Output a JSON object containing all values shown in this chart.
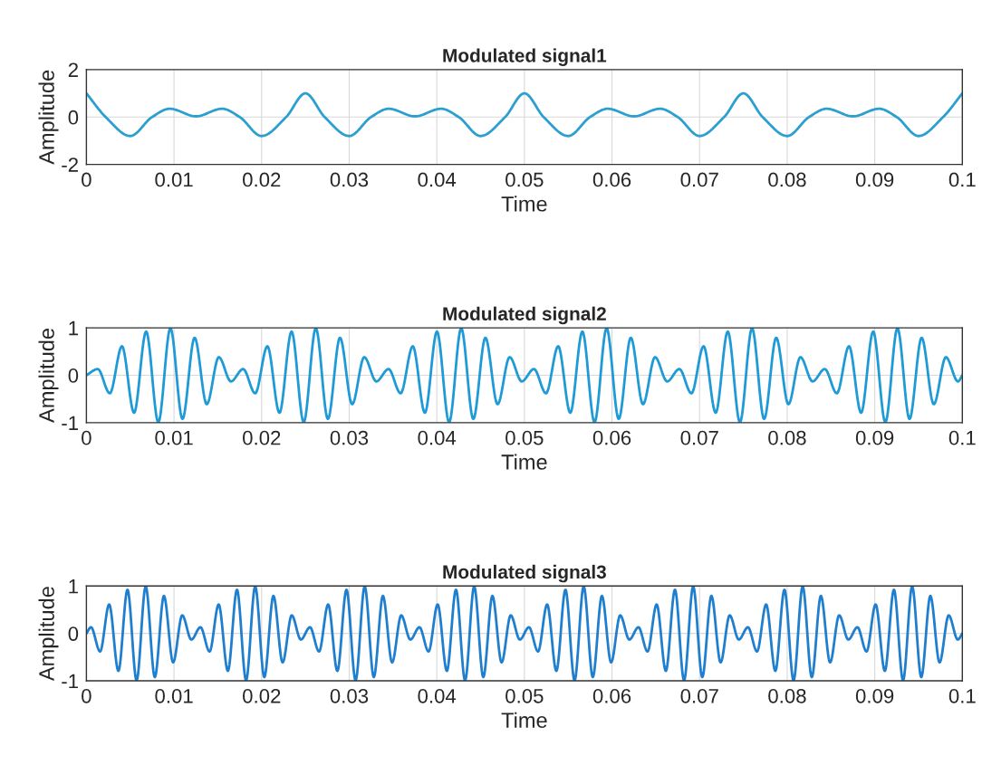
{
  "chart_data": [
    {
      "type": "line",
      "title": "Modulated signal1",
      "xlabel": "Time",
      "ylabel": "Amplitude",
      "xlim": [
        0,
        0.1
      ],
      "ylim": [
        -2,
        2
      ],
      "xticks": [
        0,
        0.01,
        0.02,
        0.03,
        0.04,
        0.05,
        0.06,
        0.07,
        0.08,
        0.09,
        0.1
      ],
      "yticks": [
        -2,
        0,
        2
      ],
      "grid": true,
      "series": [
        {
          "color": "#2a9fd0",
          "x": [
            0,
            0.0022,
            0.005,
            0.0075,
            0.0095,
            0.0125,
            0.0155,
            0.0175,
            0.02,
            0.0228,
            0.025,
            0.0272,
            0.03,
            0.0325,
            0.0345,
            0.0375,
            0.0405,
            0.0425,
            0.045,
            0.0478,
            0.05,
            0.0522,
            0.055,
            0.0575,
            0.0595,
            0.0625,
            0.0655,
            0.0675,
            0.07,
            0.0728,
            0.075,
            0.0772,
            0.08,
            0.0825,
            0.0845,
            0.0875,
            0.0905,
            0.0925,
            0.095,
            0.0978,
            0.1
          ],
          "values": [
            1,
            0,
            -0.8,
            0,
            0.35,
            0.03,
            0.35,
            0,
            -0.8,
            0,
            1,
            0,
            -0.8,
            0,
            0.35,
            0.03,
            0.35,
            0,
            -0.8,
            0,
            1,
            0,
            -0.8,
            0,
            0.35,
            0.03,
            0.35,
            0,
            -0.8,
            0,
            1,
            0,
            -0.8,
            0,
            0.35,
            0.03,
            0.35,
            0,
            -0.8,
            0,
            1
          ]
        }
      ]
    },
    {
      "type": "line",
      "title": "Modulated signal2",
      "xlabel": "Time",
      "ylabel": "Amplitude",
      "xlim": [
        0,
        0.1
      ],
      "ylim": [
        -1,
        1
      ],
      "xticks": [
        0,
        0.01,
        0.02,
        0.03,
        0.04,
        0.05,
        0.06,
        0.07,
        0.08,
        0.09,
        0.1
      ],
      "yticks": [
        -1,
        0,
        1
      ],
      "grid": true,
      "series": [
        {
          "color": "#1e9ad6",
          "x": [
            0,
            0.00129,
            0.00267,
            0.00406,
            0.00544,
            0.00682,
            0.00821,
            0.00959,
            0.01097,
            0.01235,
            0.01374,
            0.01512,
            0.0165,
            0.01789,
            0.01927,
            0.02066,
            0.02204,
            0.02342,
            0.02481,
            0.02619,
            0.02757,
            0.02895,
            0.03034,
            0.03172,
            0.0331,
            0.03449,
            0.03587,
            0.03726,
            0.03864,
            0.04002,
            0.04141,
            0.04279,
            0.04417,
            0.04555,
            0.04694,
            0.04832,
            0.0497,
            0.05109,
            0.05247,
            0.05386,
            0.05524,
            0.05662,
            0.05801,
            0.05939,
            0.06077,
            0.06215,
            0.06354,
            0.06492,
            0.0663,
            0.06769,
            0.06907,
            0.07046,
            0.07184,
            0.07322,
            0.07461,
            0.07599,
            0.07737,
            0.07875,
            0.08014,
            0.08152,
            0.0829,
            0.08429,
            0.08567,
            0.08706,
            0.08844,
            0.08982,
            0.09121,
            0.09259,
            0.09397,
            0.09535,
            0.09674,
            0.09812,
            0.0995,
            0.1
          ],
          "values": [
            0,
            0.13,
            -0.38,
            0.61,
            -0.79,
            0.92,
            -0.99,
            0.99,
            -0.92,
            0.79,
            -0.61,
            0.38,
            -0.13,
            0.13,
            -0.38,
            0.61,
            -0.79,
            0.92,
            -0.99,
            0.99,
            -0.92,
            0.79,
            -0.61,
            0.38,
            -0.13,
            0.13,
            -0.38,
            0.61,
            -0.79,
            0.92,
            -0.99,
            0.99,
            -0.92,
            0.79,
            -0.61,
            0.38,
            -0.13,
            0.13,
            -0.38,
            0.61,
            -0.79,
            0.92,
            -0.99,
            0.99,
            -0.92,
            0.79,
            -0.61,
            0.38,
            -0.13,
            0.13,
            -0.38,
            0.61,
            -0.79,
            0.92,
            -0.99,
            0.99,
            -0.92,
            0.79,
            -0.61,
            0.38,
            -0.13,
            0.13,
            -0.38,
            0.61,
            -0.79,
            0.92,
            -0.99,
            0.99,
            -0.92,
            0.79,
            -0.61,
            0.38,
            -0.13,
            0
          ]
        }
      ]
    },
    {
      "type": "line",
      "title": "Modulated signal3",
      "xlabel": "Time",
      "ylabel": "Amplitude",
      "xlim": [
        0,
        0.1
      ],
      "ylim": [
        -1,
        1
      ],
      "xticks": [
        0,
        0.01,
        0.02,
        0.03,
        0.04,
        0.05,
        0.06,
        0.07,
        0.08,
        0.09,
        0.1
      ],
      "yticks": [
        -1,
        0,
        1
      ],
      "grid": true,
      "series": [
        {
          "color": "#1f7fce",
          "x": [
            0,
            0.00052,
            0.00156,
            0.0026,
            0.00365,
            0.00469,
            0.00573,
            0.00677,
            0.00781,
            0.00885,
            0.0099,
            0.01094,
            0.01198,
            0.01302,
            0.01406,
            0.0151,
            0.01615,
            0.01719,
            0.01823,
            0.01927,
            0.02031,
            0.02135,
            0.0224,
            0.02344,
            0.02448,
            0.02552,
            0.02656,
            0.0276,
            0.02865,
            0.02969,
            0.03073,
            0.03177,
            0.03281,
            0.03385,
            0.0349,
            0.03594,
            0.03698,
            0.03802,
            0.03906,
            0.0401,
            0.04115,
            0.04219,
            0.04323,
            0.04427,
            0.04531,
            0.04635,
            0.0474,
            0.04844,
            0.04948,
            0.05052,
            0.05156,
            0.0526,
            0.05365,
            0.05469,
            0.05573,
            0.05677,
            0.05781,
            0.05885,
            0.0599,
            0.06094,
            0.06198,
            0.06302,
            0.06406,
            0.0651,
            0.06615,
            0.06719,
            0.06823,
            0.06927,
            0.07031,
            0.07135,
            0.0724,
            0.07344,
            0.07448,
            0.07552,
            0.07656,
            0.0776,
            0.07865,
            0.07969,
            0.08073,
            0.08177,
            0.08281,
            0.08385,
            0.0849,
            0.08594,
            0.08698,
            0.08802,
            0.08906,
            0.0901,
            0.09115,
            0.09219,
            0.09323,
            0.09427,
            0.09531,
            0.09635,
            0.0974,
            0.09844,
            0.09948,
            0.1
          ],
          "values": [
            0,
            0.13,
            -0.38,
            0.61,
            -0.79,
            0.92,
            -0.99,
            0.99,
            -0.92,
            0.79,
            -0.61,
            0.38,
            -0.13,
            0.13,
            -0.38,
            0.61,
            -0.79,
            0.92,
            -0.99,
            0.99,
            -0.92,
            0.79,
            -0.61,
            0.38,
            -0.13,
            0.13,
            -0.38,
            0.61,
            -0.79,
            0.92,
            -0.99,
            0.99,
            -0.92,
            0.79,
            -0.61,
            0.38,
            -0.13,
            0.13,
            -0.38,
            0.61,
            -0.79,
            0.92,
            -0.99,
            0.99,
            -0.92,
            0.79,
            -0.61,
            0.38,
            -0.13,
            0.13,
            -0.38,
            0.61,
            -0.79,
            0.92,
            -0.99,
            0.99,
            -0.92,
            0.79,
            -0.61,
            0.38,
            -0.13,
            0.13,
            -0.38,
            0.61,
            -0.79,
            0.92,
            -0.99,
            0.99,
            -0.92,
            0.79,
            -0.61,
            0.38,
            -0.13,
            0.13,
            -0.38,
            0.61,
            -0.79,
            0.92,
            -0.99,
            0.99,
            -0.92,
            0.79,
            -0.61,
            0.38,
            -0.13,
            0.13,
            -0.38,
            0.61,
            -0.79,
            0.92,
            -0.99,
            0.99,
            -0.92,
            0.79,
            -0.61,
            0.38,
            -0.13,
            0
          ]
        }
      ]
    }
  ]
}
